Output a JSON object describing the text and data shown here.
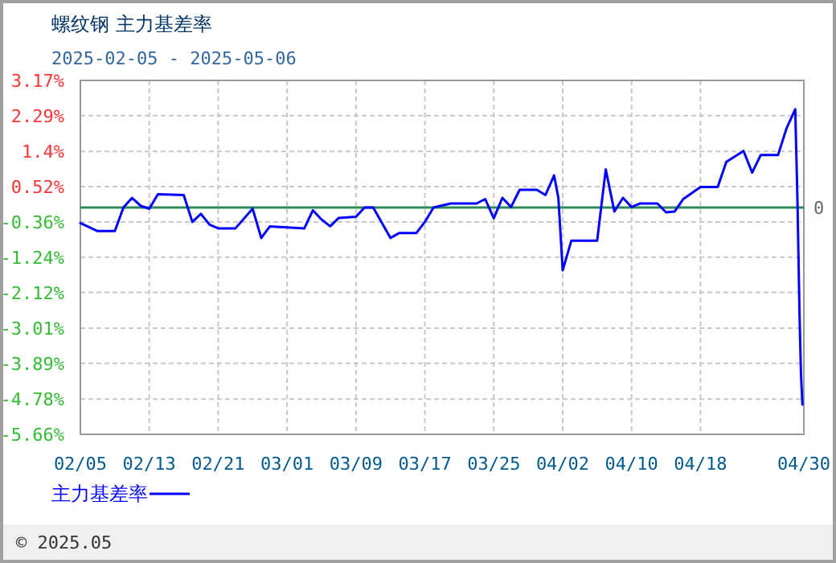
{
  "chart_data": {
    "type": "line",
    "title": "螺纹钢 主力基差率",
    "subtitle": "2025-02-05 - 2025-05-06",
    "x": [
      "2025-02-05",
      "2025-02-07",
      "2025-02-09",
      "2025-02-10",
      "2025-02-11",
      "2025-02-12",
      "2025-02-13",
      "2025-02-14",
      "2025-02-17",
      "2025-02-18",
      "2025-02-19",
      "2025-02-20",
      "2025-02-21",
      "2025-02-23",
      "2025-02-25",
      "2025-02-26",
      "2025-02-27",
      "2025-03-03",
      "2025-03-04",
      "2025-03-05",
      "2025-03-06",
      "2025-03-07",
      "2025-03-09",
      "2025-03-10",
      "2025-03-11",
      "2025-03-13",
      "2025-03-14",
      "2025-03-16",
      "2025-03-17",
      "2025-03-18",
      "2025-03-20",
      "2025-03-23",
      "2025-03-24",
      "2025-03-25",
      "2025-03-26",
      "2025-03-27",
      "2025-03-28",
      "2025-03-30",
      "2025-03-31",
      "2025-04-01",
      "2025-04-01T12:00",
      "2025-04-02",
      "2025-04-03",
      "2025-04-06",
      "2025-04-07",
      "2025-04-08",
      "2025-04-09",
      "2025-04-10",
      "2025-04-11",
      "2025-04-13",
      "2025-04-14",
      "2025-04-15",
      "2025-04-16",
      "2025-04-18",
      "2025-04-20",
      "2025-04-21",
      "2025-04-23",
      "2025-04-24",
      "2025-04-25",
      "2025-04-27",
      "2025-04-28",
      "2025-04-29",
      "2025-04-29T06:00",
      "2025-04-29T09:00",
      "2025-04-29T12:00",
      "2025-04-29T16:00",
      "2025-04-29T20:00"
    ],
    "series": [
      {
        "name": "主力基差率",
        "color": "#0000ff",
        "values": [
          -0.39,
          -0.59,
          -0.59,
          0,
          0.24,
          0.04,
          -0.03,
          0.33,
          0.31,
          -0.36,
          -0.16,
          -0.43,
          -0.52,
          -0.52,
          -0.03,
          -0.76,
          -0.47,
          -0.52,
          -0.07,
          -0.3,
          -0.47,
          -0.26,
          -0.23,
          0,
          0,
          -0.76,
          -0.64,
          -0.64,
          -0.36,
          0,
          0.1,
          0.1,
          0.21,
          -0.27,
          0.24,
          0.01,
          0.44,
          0.44,
          0.31,
          0.8,
          0.24,
          -1.57,
          -0.83,
          -0.83,
          0.95,
          -0.1,
          0.24,
          0.01,
          0.1,
          0.1,
          -0.12,
          -0.1,
          0.21,
          0.51,
          0.51,
          1.14,
          1.41,
          0.87,
          1.31,
          1.31,
          1.98,
          2.45,
          0.27,
          -1.2,
          -2.68,
          -4.14,
          -4.92
        ]
      }
    ],
    "xlim": [
      "2025-02-05",
      "2025-04-30"
    ],
    "xticks": [
      {
        "value": "2025-02-05",
        "label": "02/05"
      },
      {
        "value": "2025-02-13",
        "label": "02/13"
      },
      {
        "value": "2025-02-21",
        "label": "02/21"
      },
      {
        "value": "2025-03-01",
        "label": "03/01"
      },
      {
        "value": "2025-03-09",
        "label": "03/09"
      },
      {
        "value": "2025-03-17",
        "label": "03/17"
      },
      {
        "value": "2025-03-25",
        "label": "03/25"
      },
      {
        "value": "2025-04-02",
        "label": "04/02"
      },
      {
        "value": "2025-04-10",
        "label": "04/10"
      },
      {
        "value": "2025-04-18",
        "label": "04/18"
      },
      {
        "value": "2025-04-30",
        "label": "04/30"
      }
    ],
    "ylim": [
      -5.66,
      3.17
    ],
    "yticks": [
      {
        "value": 3.17,
        "label": "3.17%"
      },
      {
        "value": 2.29,
        "label": "2.29%"
      },
      {
        "value": 1.4,
        "label": "1.4%"
      },
      {
        "value": 0.52,
        "label": "0.52%"
      },
      {
        "value": -0.36,
        "label": "-0.36%"
      },
      {
        "value": -1.24,
        "label": "-1.24%"
      },
      {
        "value": -2.12,
        "label": "-2.12%"
      },
      {
        "value": -3.01,
        "label": "-3.01%"
      },
      {
        "value": -3.89,
        "label": "-3.89%"
      },
      {
        "value": -4.78,
        "label": "-4.78%"
      },
      {
        "value": -5.66,
        "label": "-5.66%"
      }
    ],
    "ref_lines": [
      {
        "axis": "y",
        "value": 0,
        "label": "0",
        "color": "#2e8b57"
      }
    ],
    "annotations": [
      "© 2025.05"
    ],
    "grid": true,
    "legend": "bottom",
    "marker": "none",
    "line_style": "solid"
  }
}
